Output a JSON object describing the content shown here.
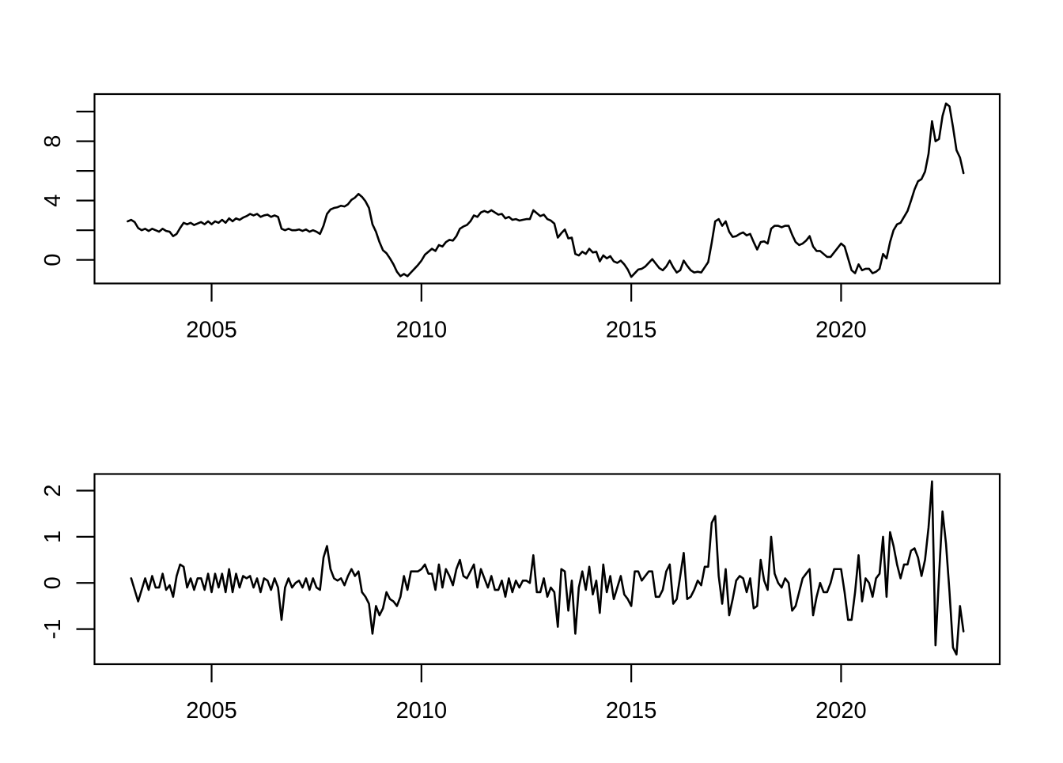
{
  "colors": {
    "background": "#ffffff",
    "axis": "#000000",
    "line": "#000000"
  },
  "figure": {
    "description": "Two stacked base-R style time series plots: monthly inflation-like series (top panel) and its first differences (bottom panel)",
    "title": "",
    "xlabel": "",
    "ylabel": ""
  },
  "chart_data": [
    {
      "type": "line",
      "name": "level-series",
      "title": "",
      "xlabel": "",
      "ylabel": "",
      "grid": false,
      "legend": null,
      "x_start": 2003.0,
      "x_step": 0.08333333,
      "xlim": [
        2002.21,
        2023.78
      ],
      "ylim": [
        -1.59,
        11.18
      ],
      "x_ticks": [
        {
          "value": 2005,
          "label": "2005"
        },
        {
          "value": 2010,
          "label": "2010"
        },
        {
          "value": 2015,
          "label": "2015"
        },
        {
          "value": 2020,
          "label": "2020"
        }
      ],
      "y_ticks_all": [
        0,
        2,
        4,
        6,
        8,
        10
      ],
      "y_ticks_labeled": [
        {
          "value": 0,
          "label": "0"
        },
        {
          "value": 4,
          "label": "4"
        },
        {
          "value": 8,
          "label": "8"
        }
      ],
      "values": [
        2.6,
        2.7,
        2.55,
        2.15,
        2.0,
        2.1,
        1.95,
        2.1,
        2.0,
        1.9,
        2.1,
        1.95,
        1.9,
        1.6,
        1.75,
        2.15,
        2.5,
        2.4,
        2.5,
        2.35,
        2.45,
        2.55,
        2.4,
        2.6,
        2.4,
        2.6,
        2.5,
        2.7,
        2.5,
        2.8,
        2.6,
        2.8,
        2.7,
        2.85,
        2.95,
        3.1,
        3.0,
        3.1,
        2.9,
        3.0,
        3.05,
        2.9,
        3.0,
        2.9,
        2.1,
        2.0,
        2.1,
        2.0,
        2.0,
        2.05,
        1.95,
        2.05,
        1.9,
        2.0,
        1.9,
        1.75,
        2.3,
        3.1,
        3.4,
        3.5,
        3.55,
        3.65,
        3.6,
        3.75,
        4.05,
        4.2,
        4.45,
        4.25,
        3.95,
        3.5,
        2.4,
        1.9,
        1.2,
        0.65,
        0.45,
        0.1,
        -0.3,
        -0.8,
        -1.1,
        -0.95,
        -1.1,
        -0.85,
        -0.6,
        -0.35,
        -0.05,
        0.35,
        0.55,
        0.75,
        0.6,
        1.0,
        0.9,
        1.2,
        1.35,
        1.3,
        1.6,
        2.1,
        2.25,
        2.35,
        2.6,
        3.0,
        2.9,
        3.2,
        3.3,
        3.2,
        3.35,
        3.2,
        3.05,
        3.1,
        2.8,
        2.9,
        2.7,
        2.75,
        2.65,
        2.7,
        2.75,
        2.75,
        3.35,
        3.15,
        2.95,
        3.05,
        2.75,
        2.65,
        2.45,
        1.5,
        1.8,
        2.05,
        1.45,
        1.5,
        0.4,
        0.3,
        0.55,
        0.4,
        0.75,
        0.5,
        0.55,
        -0.1,
        0.3,
        0.1,
        0.25,
        -0.1,
        -0.2,
        -0.05,
        -0.3,
        -0.65,
        -1.15,
        -0.9,
        -0.65,
        -0.6,
        -0.45,
        -0.2,
        0.05,
        -0.25,
        -0.55,
        -0.7,
        -0.45,
        -0.05,
        -0.5,
        -0.85,
        -0.7,
        -0.05,
        -0.4,
        -0.7,
        -0.85,
        -0.8,
        -0.85,
        -0.5,
        -0.15,
        1.15,
        2.6,
        2.75,
        2.3,
        2.6,
        1.9,
        1.55,
        1.6,
        1.75,
        1.85,
        1.65,
        1.75,
        1.2,
        0.7,
        1.2,
        1.25,
        1.1,
        2.1,
        2.3,
        2.3,
        2.2,
        2.3,
        2.3,
        1.7,
        1.2,
        1.0,
        1.1,
        1.3,
        1.6,
        0.9,
        0.6,
        0.6,
        0.4,
        0.2,
        0.2,
        0.5,
        0.8,
        1.1,
        0.9,
        0.1,
        -0.7,
        -0.9,
        -0.3,
        -0.7,
        -0.6,
        -0.6,
        -0.9,
        -0.8,
        -0.6,
        0.4,
        0.1,
        1.2,
        2.0,
        2.4,
        2.5,
        2.9,
        3.3,
        4.0,
        4.75,
        5.3,
        5.45,
        5.95,
        7.15,
        9.35,
        8.0,
        8.15,
        9.7,
        10.55,
        10.35,
        8.95,
        7.4,
        6.9,
        5.85
      ]
    },
    {
      "type": "line",
      "name": "diff-series",
      "note": "first differences of level-series",
      "title": "",
      "xlabel": "",
      "ylabel": "",
      "grid": false,
      "legend": null,
      "x_start": 2003.08333333,
      "x_step": 0.08333333,
      "xlim": [
        2002.21,
        2023.78
      ],
      "ylim": [
        -1.76,
        2.36
      ],
      "x_ticks": [
        {
          "value": 2005,
          "label": "2005"
        },
        {
          "value": 2010,
          "label": "2010"
        },
        {
          "value": 2015,
          "label": "2015"
        },
        {
          "value": 2020,
          "label": "2020"
        }
      ],
      "y_ticks_all": [
        -1,
        0,
        1,
        2
      ],
      "y_ticks_labeled": [
        {
          "value": -1,
          "label": "-1"
        },
        {
          "value": 0,
          "label": "0"
        },
        {
          "value": 1,
          "label": "1"
        },
        {
          "value": 2,
          "label": "2"
        }
      ],
      "values": [
        0.1,
        -0.15,
        -0.4,
        -0.15,
        0.1,
        -0.15,
        0.15,
        -0.1,
        -0.1,
        0.2,
        -0.15,
        -0.05,
        -0.3,
        0.15,
        0.4,
        0.35,
        -0.1,
        0.1,
        -0.15,
        0.1,
        0.1,
        -0.15,
        0.2,
        -0.2,
        0.2,
        -0.1,
        0.2,
        -0.2,
        0.3,
        -0.2,
        0.2,
        -0.1,
        0.15,
        0.1,
        0.15,
        -0.1,
        0.1,
        -0.2,
        0.1,
        0.05,
        -0.15,
        0.1,
        -0.1,
        -0.8,
        -0.1,
        0.1,
        -0.1,
        0.0,
        0.05,
        -0.1,
        0.1,
        -0.15,
        0.1,
        -0.1,
        -0.15,
        0.55,
        0.8,
        0.3,
        0.1,
        0.05,
        0.1,
        -0.05,
        0.15,
        0.3,
        0.15,
        0.25,
        -0.2,
        -0.3,
        -0.45,
        -1.1,
        -0.5,
        -0.7,
        -0.55,
        -0.2,
        -0.35,
        -0.4,
        -0.5,
        -0.3,
        0.15,
        -0.15,
        0.25,
        0.25,
        0.25,
        0.3,
        0.4,
        0.2,
        0.2,
        -0.15,
        0.4,
        -0.1,
        0.3,
        0.15,
        -0.05,
        0.3,
        0.5,
        0.15,
        0.1,
        0.25,
        0.4,
        -0.1,
        0.3,
        0.1,
        -0.1,
        0.15,
        -0.15,
        -0.15,
        0.05,
        -0.3,
        0.1,
        -0.2,
        0.05,
        -0.1,
        0.05,
        0.05,
        0.0,
        0.6,
        -0.2,
        -0.2,
        0.1,
        -0.3,
        -0.1,
        -0.2,
        -0.95,
        0.3,
        0.25,
        -0.6,
        0.05,
        -1.1,
        -0.1,
        0.25,
        -0.15,
        0.35,
        -0.25,
        0.05,
        -0.65,
        0.4,
        -0.2,
        0.15,
        -0.35,
        -0.1,
        0.15,
        -0.25,
        -0.35,
        -0.5,
        0.25,
        0.25,
        0.05,
        0.15,
        0.25,
        0.25,
        -0.3,
        -0.3,
        -0.15,
        0.25,
        0.4,
        -0.45,
        -0.35,
        0.15,
        0.65,
        -0.35,
        -0.3,
        -0.15,
        0.05,
        -0.05,
        0.35,
        0.35,
        1.3,
        1.45,
        0.15,
        -0.45,
        0.3,
        -0.7,
        -0.35,
        0.05,
        0.15,
        0.1,
        -0.2,
        0.1,
        -0.55,
        -0.5,
        0.5,
        0.05,
        -0.15,
        1.0,
        0.2,
        0.0,
        -0.1,
        0.1,
        0.0,
        -0.6,
        -0.5,
        -0.2,
        0.1,
        0.2,
        0.3,
        -0.7,
        -0.3,
        0.0,
        -0.2,
        -0.2,
        0.0,
        0.3,
        0.3,
        0.3,
        -0.2,
        -0.8,
        -0.8,
        -0.2,
        0.6,
        -0.4,
        0.1,
        0.0,
        -0.3,
        0.1,
        0.2,
        1.0,
        -0.3,
        1.1,
        0.8,
        0.4,
        0.1,
        0.4,
        0.4,
        0.7,
        0.75,
        0.55,
        0.15,
        0.5,
        1.2,
        2.2,
        -1.35,
        0.15,
        1.55,
        0.85,
        -0.2,
        -1.4,
        -1.55,
        -0.5,
        -1.05
      ]
    }
  ]
}
